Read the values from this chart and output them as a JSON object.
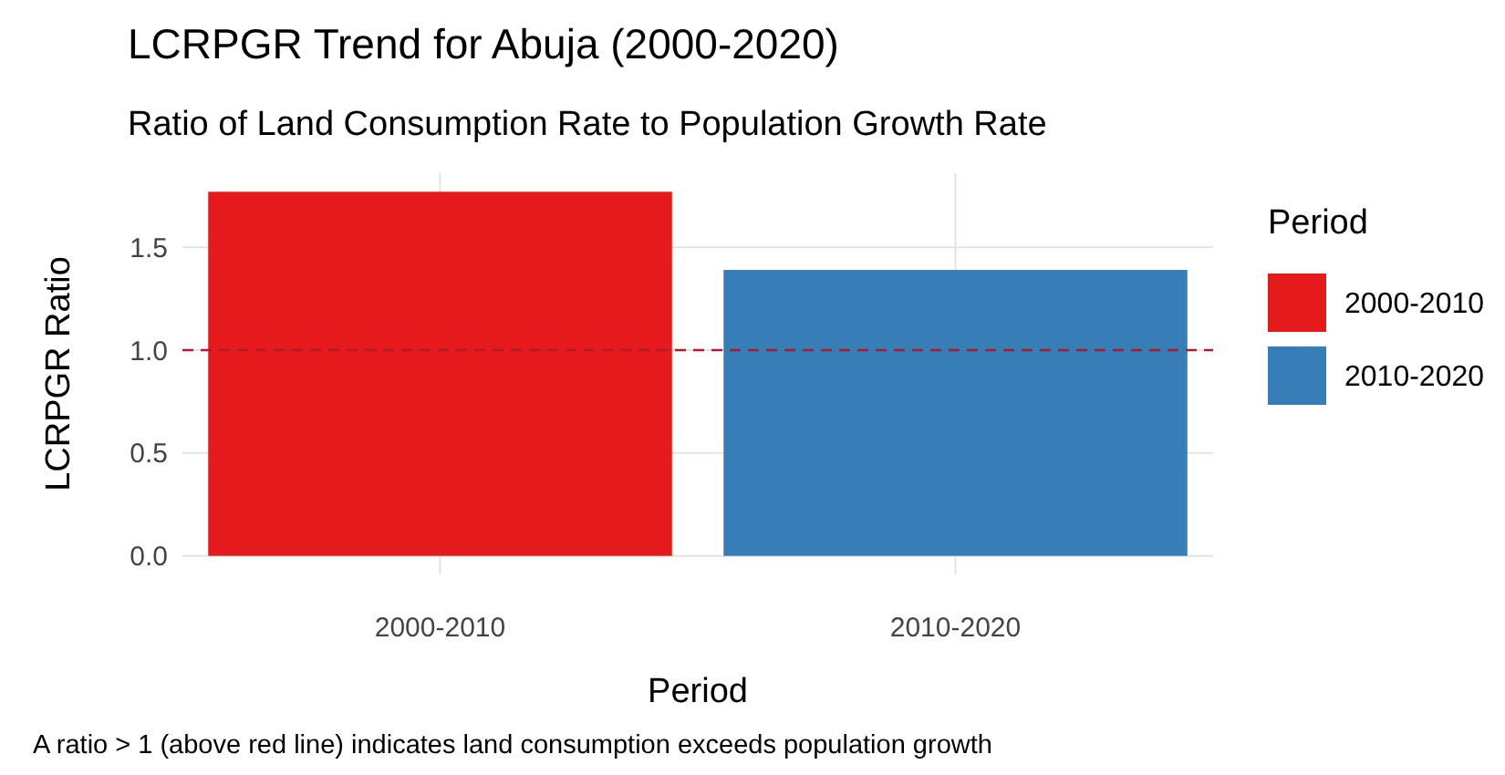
{
  "chart_data": {
    "type": "bar",
    "title": "LCRPGR Trend for Abuja (2000-2020)",
    "subtitle": "Ratio of Land Consumption Rate to Population Growth Rate",
    "xlabel": "Period",
    "ylabel": "LCRPGR Ratio",
    "legend_title": "Period",
    "categories": [
      "2000-2010",
      "2010-2020"
    ],
    "series": [
      {
        "name": "2000-2010",
        "color": "#e41a1c",
        "values": [
          1.77,
          null
        ]
      },
      {
        "name": "2010-2020",
        "color": "#377eb8",
        "values": [
          null,
          1.39
        ]
      }
    ],
    "ylim": [
      -0.09,
      1.86
    ],
    "yticks": [
      {
        "value": 0,
        "label": "0.0"
      },
      {
        "value": 0.5,
        "label": "0.5"
      },
      {
        "value": 1,
        "label": "1.0"
      },
      {
        "value": 1.5,
        "label": "1.5"
      }
    ],
    "grid": true,
    "legend": "right",
    "ref_lines": [
      {
        "axis": "y",
        "value": 1,
        "color": "#b2182b",
        "line_style": "dashed"
      }
    ],
    "annotations": [
      "A ratio > 1 (above red line) indicates land consumption exceeds population growth"
    ]
  }
}
